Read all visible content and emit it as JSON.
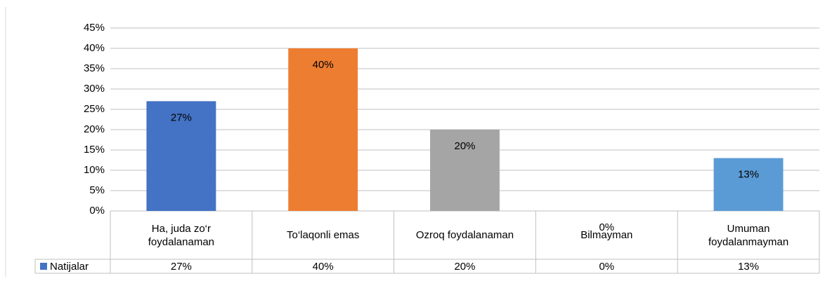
{
  "chart_data": {
    "type": "bar",
    "categories": [
      "Ha, juda zo‘r foydalanaman",
      "To‘laqonli emas",
      "Ozroq foydalanaman",
      "Bilmayman",
      "Umuman foydalanmayman"
    ],
    "series": [
      {
        "name": "Natijalar",
        "color": "#4472c4",
        "colors": [
          "#4472c4",
          "#ed7d31",
          "#a5a5a5",
          "#ffc000",
          "#5b9bd5"
        ],
        "values": [
          27,
          40,
          20,
          0,
          13
        ],
        "value_labels": [
          "27%",
          "40%",
          "20%",
          "0%",
          "13%"
        ]
      }
    ],
    "ylim": [
      0,
      45
    ],
    "yticks": [
      {
        "value": 0,
        "label": "0%"
      },
      {
        "value": 5,
        "label": "5%"
      },
      {
        "value": 10,
        "label": "10%"
      },
      {
        "value": 15,
        "label": "15%"
      },
      {
        "value": 20,
        "label": "20%"
      },
      {
        "value": 25,
        "label": "25%"
      },
      {
        "value": 30,
        "label": "30%"
      },
      {
        "value": 35,
        "label": "35%"
      },
      {
        "value": 40,
        "label": "40%"
      },
      {
        "value": 45,
        "label": "45%"
      }
    ],
    "grid": true,
    "data_table": true
  }
}
